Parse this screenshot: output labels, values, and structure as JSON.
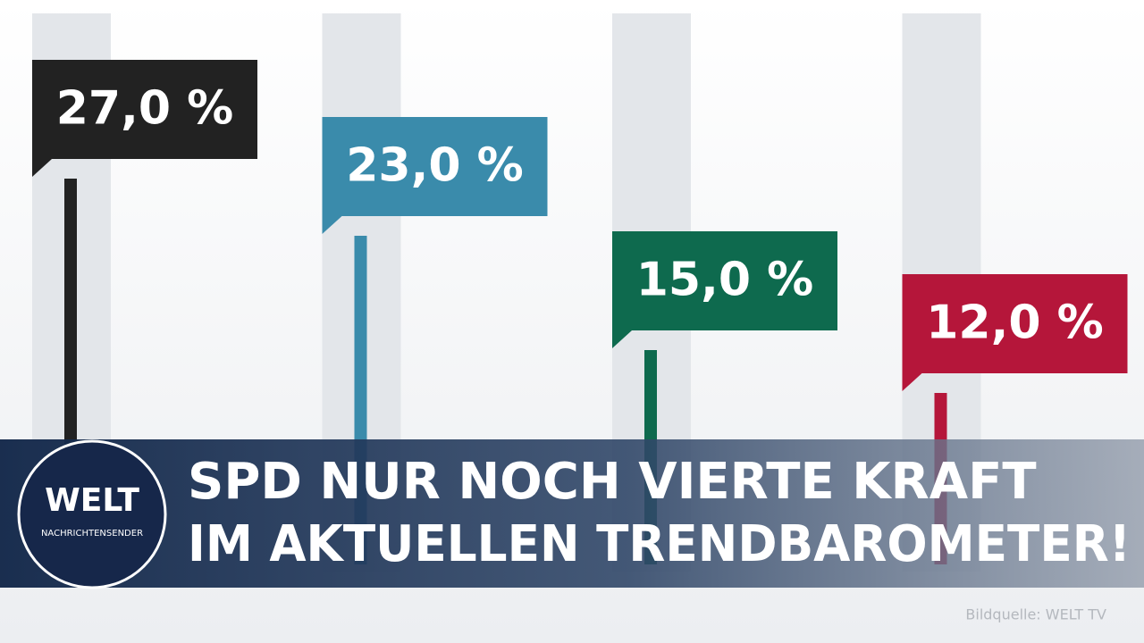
{
  "chart_data": {
    "type": "bar",
    "categories": [
      null,
      null,
      null,
      null
    ],
    "values": [
      27,
      23,
      15,
      12
    ],
    "value_labels": [
      "27,0 %",
      "23,0 %",
      "15,0 %",
      "12,0 %"
    ],
    "colors": [
      "#222222",
      "#3a8bab",
      "#0e6a4e",
      "#b5163a"
    ],
    "ylim": [
      0,
      39.5
    ]
  },
  "banner": {
    "lines": [
      "SPD NUR NOCH VIERTE KRAFT",
      "IM AKTUELLEN TRENDBAROMETER!"
    ]
  },
  "logo": {
    "name": "WELT",
    "subtitle": "NACHRICHTENSENDER"
  },
  "source": "Bildquelle: WELT TV"
}
